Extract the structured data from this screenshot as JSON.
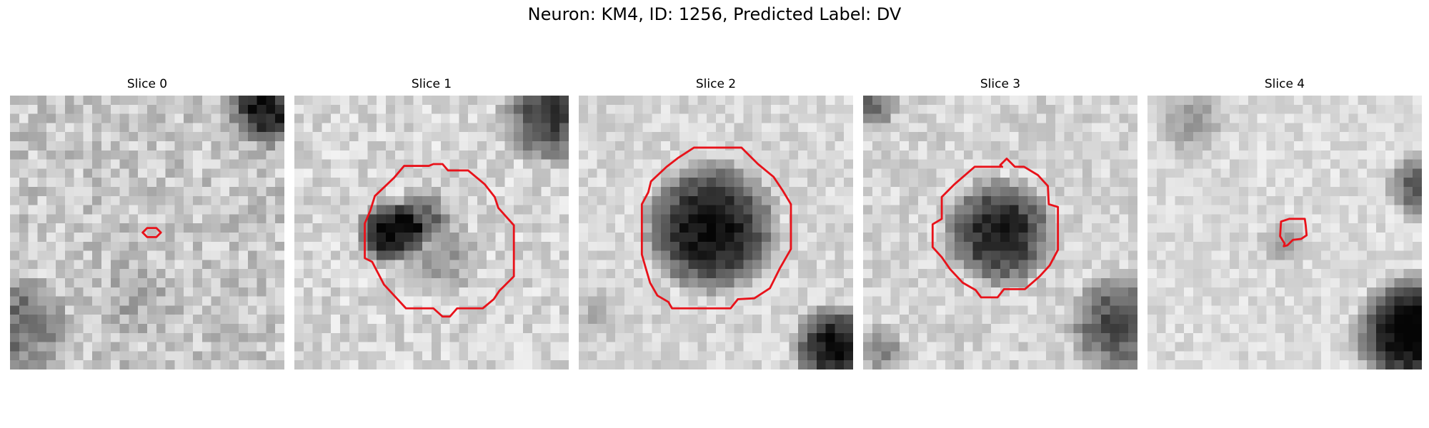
{
  "figure": {
    "title": "Neuron: KM4, ID: 1256, Predicted Label: DV",
    "panels": [
      {
        "title": "Slice 0"
      },
      {
        "title": "Slice 1"
      },
      {
        "title": "Slice 2"
      },
      {
        "title": "Slice 3"
      },
      {
        "title": "Slice 4"
      }
    ],
    "contour_color": "#e8121a"
  }
}
